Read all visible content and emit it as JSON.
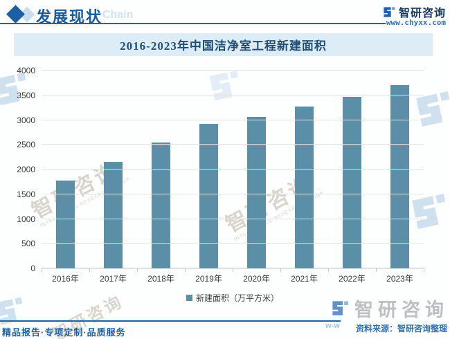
{
  "header": {
    "section_title": "发展现状",
    "section_watermark": "Chain",
    "brand": "智研咨询",
    "website": "www.chyxx.com"
  },
  "chart_data": {
    "type": "bar",
    "title": "2016-2023年中国洁净室工程新建面积",
    "categories": [
      "2016年",
      "2017年",
      "2018年",
      "2019年",
      "2020年",
      "2021年",
      "2022年",
      "2023年"
    ],
    "series": [
      {
        "name": "新建面积（万平方米）",
        "values": [
          1780,
          2160,
          2550,
          2920,
          3060,
          3270,
          3470,
          3700
        ]
      }
    ],
    "xlabel": "",
    "ylabel": "",
    "ylim": [
      0,
      4000
    ],
    "yticks": [
      0,
      500,
      1000,
      1500,
      2000,
      2500,
      3000,
      3500,
      4000
    ],
    "grid": true,
    "legend_position": "bottom",
    "bar_color": "#5b8fa8"
  },
  "footer": {
    "tagline": "精品报告·专项定制·品质服务",
    "source": "资料来源：智研咨询整理",
    "brand": "智研咨询",
    "url_fragment": "w-w"
  },
  "watermark": {
    "brand_text": "智研咨询",
    "caption": "INTELLIGENCE RESEARCH GROUP"
  },
  "colors": {
    "accent_blue": "#23639f",
    "bar": "#5b8fa8",
    "title_navy": "#1f4e79",
    "band_bg": "#ddedf8",
    "source_blue": "#2e74b5",
    "logo_blue": "#1b62b8"
  }
}
